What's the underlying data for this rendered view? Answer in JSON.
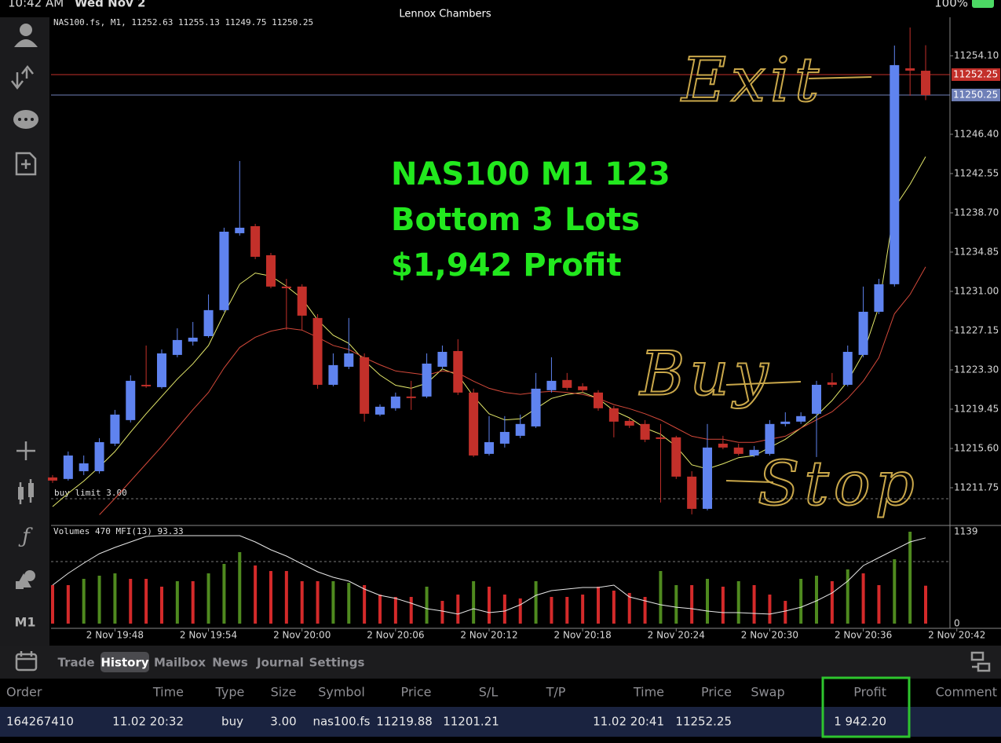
{
  "status_bar": {
    "time": "10:42 AM",
    "date": "Wed Nov 2",
    "title": "Lennox Chambers",
    "battery": "100%"
  },
  "toolbar": {
    "timeframe": "M1"
  },
  "chart_data": {
    "type": "candlestick",
    "title": "NAS100.fs, M1, 11252.63 11255.13 11249.75 11250.25",
    "annotations": [
      "NAS100 M1 123",
      "Bottom 3 Lots",
      "$1,942 Profit"
    ],
    "handwriting": [
      "Exit",
      "Buy",
      "Stop"
    ],
    "up_color": "#5f83ef",
    "down_color": "#c3302a",
    "xlim": [
      -0.1,
      57.56
    ],
    "xticks": [
      {
        "value": 4,
        "label": "2 Nov 19:48"
      },
      {
        "value": 10,
        "label": "2 Nov 19:54"
      },
      {
        "value": 16,
        "label": "2 Nov 20:00"
      },
      {
        "value": 22,
        "label": "2 Nov 20:06"
      },
      {
        "value": 28,
        "label": "2 Nov 20:12"
      },
      {
        "value": 34,
        "label": "2 Nov 20:18"
      },
      {
        "value": 40,
        "label": "2 Nov 20:24"
      },
      {
        "value": 46,
        "label": "2 Nov 20:30"
      },
      {
        "value": 52,
        "label": "2 Nov 20:36"
      },
      {
        "value": 58,
        "label": "2 Nov 20:42"
      }
    ],
    "ylim": [
      11208.13,
      11257.87
    ],
    "yticks": [
      {
        "value": 11254.1,
        "label": "11254.10"
      },
      {
        "value": 11246.4,
        "label": "11246.40"
      },
      11242.55,
      {
        "value": 11238.7,
        "label": "11238.70"
      },
      11234.85,
      {
        "value": 11231.0,
        "label": "11231.00"
      },
      11227.15,
      {
        "value": 11223.3,
        "label": "11223.30"
      },
      11219.45,
      {
        "value": 11215.6,
        "label": "11215.60"
      },
      11211.75
    ],
    "open": [
      11212.76,
      11212.61,
      11213.37,
      11213.37,
      11216.07,
      11218.38,
      11221.84,
      11221.61,
      11224.77,
      11226.08,
      11226.61,
      11229.16,
      11236.7,
      11237.39,
      11234.54,
      11231.47,
      11231.47,
      11228.39,
      11221.84,
      11223.61,
      11224.54,
      11218.92,
      11219.54,
      11220.69,
      11220.69,
      11223.61,
      11225.15,
      11221.08,
      11215.07,
      11216.07,
      11216.84,
      11217.76,
      11221.31,
      11222.31,
      11221.69,
      11221.08,
      11219.54,
      11218.3,
      11218.0,
      11216.69,
      11216.69,
      11212.84,
      11209.68,
      11216.07,
      11215.69,
      11214.91,
      11215.07,
      11218.0,
      11218.23,
      11219.0,
      11222.08,
      11221.84,
      11224.77,
      11229.0,
      11231.7,
      11252.87,
      11252.63
    ],
    "high": [
      11212.99,
      11215.3,
      11214.91,
      11216.61,
      11219.38,
      11222.77,
      11225.69,
      11225.31,
      11227.38,
      11228.0,
      11230.7,
      11237.24,
      11243.78,
      11237.62,
      11234.77,
      11232.23,
      11231.7,
      11228.77,
      11224.92,
      11228.39,
      11224.92,
      11219.92,
      11221.08,
      11222.23,
      11224.92,
      11225.69,
      11226.31,
      11221.46,
      11218.77,
      11218.77,
      11218.92,
      11223.0,
      11224.54,
      11223.0,
      11222.0,
      11221.31,
      11219.77,
      11218.54,
      11218.38,
      11218.0,
      11216.84,
      11213.37,
      11218.0,
      11216.84,
      11216.07,
      11215.84,
      11218.38,
      11219.15,
      11219.15,
      11222.23,
      11223.0,
      11225.69,
      11231.47,
      11232.23,
      11255.1,
      11256.87,
      11255.13
    ],
    "low": [
      11212.22,
      11212.45,
      11212.99,
      11213.14,
      11215.84,
      11218.15,
      11221.54,
      11221.46,
      11224.54,
      11225.69,
      11226.46,
      11229.0,
      11236.47,
      11234.16,
      11231.31,
      11227.23,
      11227.23,
      11221.46,
      11221.69,
      11223.38,
      11218.23,
      11218.77,
      11219.3,
      11219.38,
      11220.54,
      11223.38,
      11220.84,
      11214.76,
      11214.91,
      11215.69,
      11216.61,
      11217.61,
      11221.08,
      11221.31,
      11221.08,
      11219.3,
      11216.69,
      11217.61,
      11216.22,
      11210.3,
      11212.61,
      11209.14,
      11209.53,
      11215.53,
      11214.91,
      11214.76,
      11214.91,
      11217.76,
      11218.0,
      11214.76,
      11221.61,
      11221.69,
      11224.54,
      11228.77,
      11231.47,
      11250.18,
      11249.75
    ],
    "close": [
      11212.45,
      11214.91,
      11214.14,
      11216.22,
      11218.92,
      11222.23,
      11221.69,
      11224.92,
      11226.23,
      11226.46,
      11229.16,
      11236.85,
      11237.24,
      11234.39,
      11231.47,
      11231.31,
      11228.62,
      11221.84,
      11223.77,
      11224.92,
      11219.0,
      11219.69,
      11220.69,
      11220.54,
      11223.92,
      11225.07,
      11221.08,
      11214.91,
      11216.22,
      11217.22,
      11218.0,
      11221.46,
      11222.23,
      11221.54,
      11221.31,
      11219.54,
      11218.23,
      11217.84,
      11216.46,
      11216.53,
      11212.84,
      11209.68,
      11215.69,
      11215.69,
      11215.07,
      11215.46,
      11218.0,
      11218.23,
      11218.77,
      11221.84,
      11221.84,
      11225.07,
      11229.0,
      11231.7,
      11253.18,
      11252.64,
      11250.25
    ],
    "lines": [
      {
        "color": "#e4e86a",
        "values": [
          11209.9,
          11211.2,
          11212.4,
          11213.8,
          11215.3,
          11217.2,
          11219.0,
          11220.7,
          11222.4,
          11223.9,
          11225.7,
          11228.8,
          11231.7,
          11232.8,
          11232.5,
          11231.5,
          11230.3,
          11228.2,
          11226.7,
          11225.9,
          11224.2,
          11222.8,
          11221.8,
          11221.5,
          11222.0,
          11223.4,
          11222.8,
          11220.7,
          11219.0,
          11218.4,
          11218.5,
          11219.5,
          11220.5,
          11220.9,
          11221.1,
          11220.5,
          11219.3,
          11218.6,
          11217.6,
          11217.0,
          11215.8,
          11214.0,
          11213.6,
          11214.1,
          11214.7,
          11214.9,
          11215.7,
          11216.5,
          11217.6,
          11218.8,
          11220.3,
          11222.2,
          11224.9,
          11229.5,
          11239.2,
          11241.5,
          11244.2
        ]
      },
      {
        "color": "#d4493a",
        "values": [
          null,
          null,
          null,
          11209.1,
          11210.7,
          11212.4,
          11214.1,
          11215.8,
          11217.6,
          11219.4,
          11221.1,
          11223.5,
          11225.5,
          11226.5,
          11227.1,
          11227.4,
          11227.2,
          11226.5,
          11225.7,
          11225.3,
          11224.5,
          11223.8,
          11223.2,
          11223.0,
          11222.8,
          11223.2,
          11223.0,
          11222.2,
          11221.5,
          11221.1,
          11220.9,
          11221.1,
          11221.2,
          11221.1,
          11220.9,
          11220.5,
          11219.9,
          11219.5,
          11219.0,
          11218.4,
          11217.6,
          11216.8,
          11216.5,
          11216.5,
          11216.2,
          11216.2,
          11216.5,
          11216.8,
          11217.6,
          11218.4,
          11219.2,
          11220.5,
          11222.2,
          11224.5,
          11228.8,
          11230.7,
          11233.4
        ]
      }
    ],
    "price_lines": [
      {
        "value": 11252.25,
        "color": "#c3302a"
      },
      {
        "value": 11250.25,
        "color": "#6f80b8"
      }
    ],
    "order_line": {
      "label": "buy limit 3.00",
      "value": 11210.67
    },
    "volume_label": "Volumes 470 MFI(13) 93.33",
    "vylim": [
      0,
      1139
    ],
    "vyticks": [
      1139,
      0
    ],
    "volume_colors": [
      "#d42a2a",
      "#4f8a1f"
    ],
    "volume_up": [
      0,
      0,
      1,
      1,
      1,
      0,
      0,
      0,
      1,
      0,
      1,
      1,
      1,
      0,
      0,
      0,
      0,
      0,
      1,
      1,
      0,
      0,
      0,
      0,
      1,
      0,
      0,
      1,
      0,
      0,
      0,
      1,
      0,
      0,
      0,
      0,
      0,
      0,
      0,
      1,
      1,
      0,
      1,
      0,
      1,
      0,
      0,
      0,
      1,
      1,
      0,
      1,
      0,
      0,
      1,
      1,
      0
    ],
    "volumes": [
      477,
      477,
      555,
      594,
      623,
      555,
      555,
      458,
      526,
      526,
      623,
      740,
      886,
      721,
      652,
      652,
      526,
      526,
      526,
      506,
      477,
      360,
      331,
      331,
      458,
      282,
      360,
      526,
      458,
      360,
      312,
      526,
      331,
      331,
      360,
      458,
      409,
      380,
      331,
      652,
      477,
      477,
      555,
      458,
      526,
      477,
      360,
      282,
      555,
      594,
      526,
      672,
      623,
      477,
      798,
      1139,
      470
    ],
    "mfi_lim": [
      0,
      100
    ],
    "mfi": [
      41.9,
      54.7,
      65.8,
      76.1,
      82.9,
      88.9,
      94.9,
      95.7,
      95.7,
      95.7,
      95.7,
      95.7,
      95.7,
      88.9,
      80.3,
      73.5,
      65.0,
      56.4,
      50.4,
      46.2,
      37.6,
      30.8,
      27.4,
      22.2,
      16.2,
      13.7,
      10.3,
      16.2,
      12.0,
      13.7,
      20.5,
      30.8,
      35.9,
      37.6,
      39.3,
      39.3,
      41.9,
      29.1,
      24.8,
      20.5,
      17.9,
      16.2,
      13.7,
      12.0,
      12.0,
      11.1,
      10.3,
      13.7,
      17.9,
      24.8,
      33.3,
      46.2,
      63.2,
      71.8,
      80.3,
      88.9,
      93.33
    ]
  },
  "tabs": [
    "Trade",
    "History",
    "Mailbox",
    "News",
    "Journal",
    "Settings"
  ],
  "selected_tab": 1,
  "table": {
    "header": [
      "Order",
      "Time",
      "Type",
      "Size",
      "Symbol",
      "Price",
      "S/L",
      "T/P",
      "Time",
      "Price",
      "Swap",
      "Profit",
      "Comment"
    ],
    "rows": [
      [
        "164267410",
        "11.02 20:32",
        "buy",
        "3.00",
        "nas100.fs",
        "11219.88",
        "11201.21",
        null,
        "11.02 20:41",
        "11252.25",
        null,
        "1 942.20",
        null
      ]
    ],
    "highlight_column": 11
  }
}
